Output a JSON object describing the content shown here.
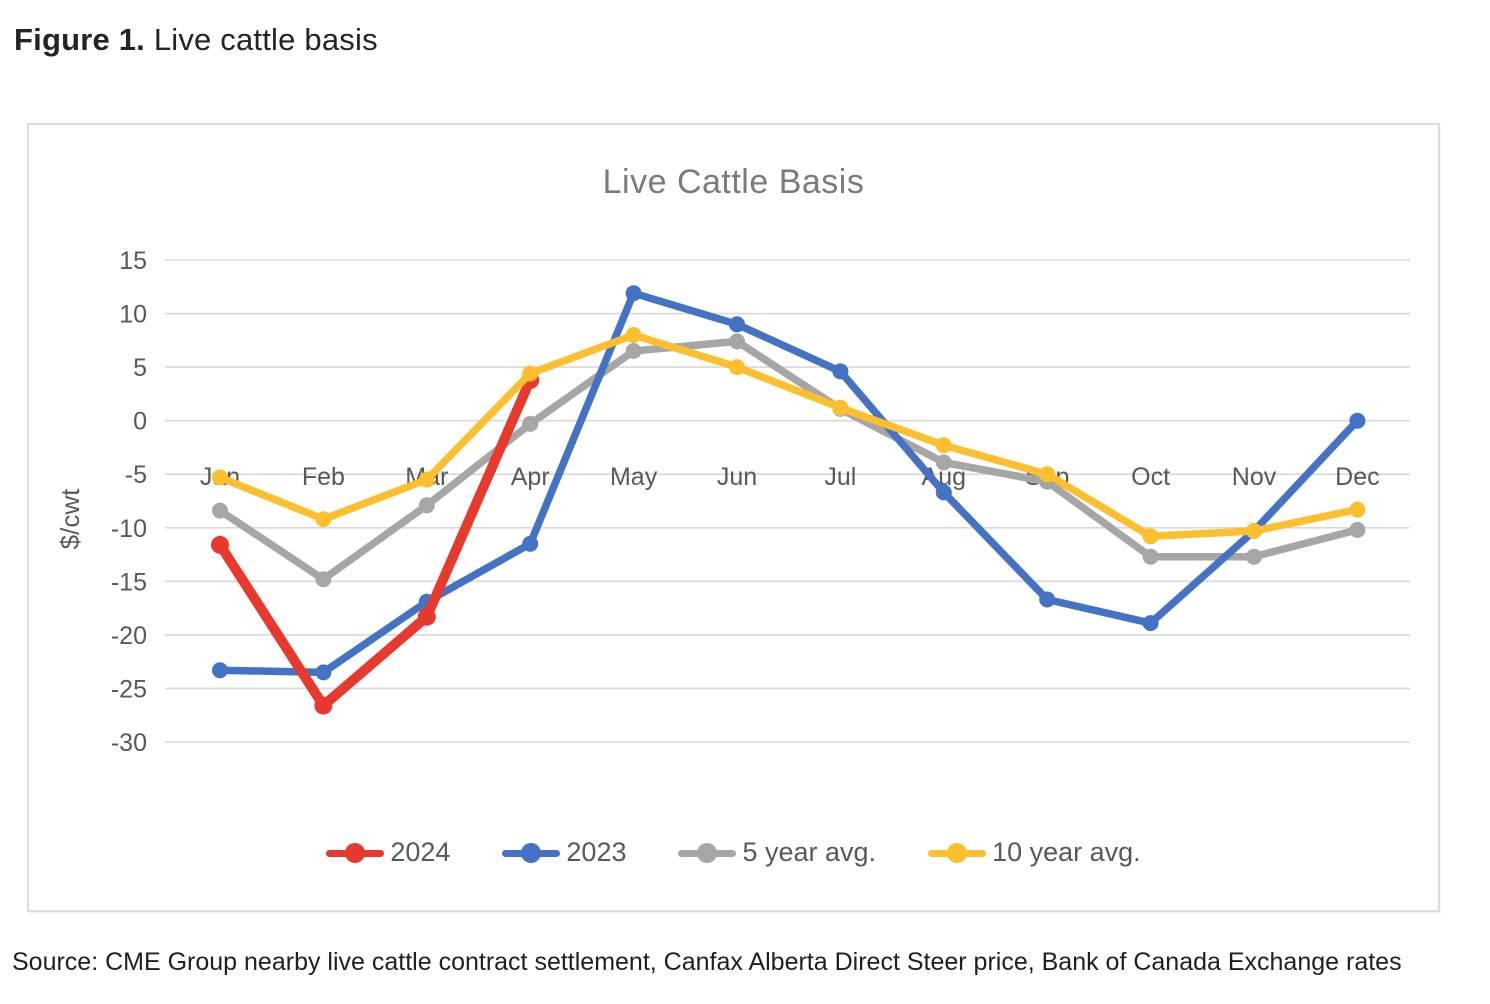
{
  "figure": {
    "label": "Figure 1.",
    "title": " Live cattle basis"
  },
  "source_note": "Source: CME Group nearby live cattle contract settlement, Canfax Alberta Direct Steer price, Bank of Canada Exchange rates",
  "chart_data": {
    "type": "line",
    "title": "Live Cattle Basis",
    "xlabel": "",
    "ylabel": "$/cwt",
    "categories": [
      "Jan",
      "Feb",
      "Mar",
      "Apr",
      "May",
      "Jun",
      "Jul",
      "Aug",
      "Sep",
      "Oct",
      "Nov",
      "Dec"
    ],
    "y_ticks": [
      15,
      10,
      5,
      0,
      -5,
      -10,
      -15,
      -20,
      -25,
      -30
    ],
    "ylim": [
      -30,
      15
    ],
    "grid": "horizontal",
    "gridline_color": "#d9d9d9",
    "legend_position": "bottom",
    "series": [
      {
        "name": "2024",
        "color": "#e8392e",
        "line_width": 10,
        "marker_radius": 9,
        "values": [
          -11.6,
          -26.6,
          -18.3,
          3.8,
          null,
          null,
          null,
          null,
          null,
          null,
          null,
          null
        ]
      },
      {
        "name": "2023",
        "color": "#4472c4",
        "line_width": 7.5,
        "marker_radius": 8,
        "values": [
          -23.3,
          -23.5,
          -16.9,
          -11.5,
          11.9,
          9.0,
          4.6,
          -6.7,
          -16.7,
          -18.9,
          -10.3,
          0.0
        ]
      },
      {
        "name": "5 year avg.",
        "color": "#a6a6a6",
        "line_width": 7.5,
        "marker_radius": 8,
        "values": [
          -8.4,
          -14.8,
          -7.9,
          -0.3,
          6.5,
          7.4,
          1.1,
          -3.9,
          -5.7,
          -12.7,
          -12.7,
          -10.2
        ]
      },
      {
        "name": "10 year avg.",
        "color": "#fcbf2e",
        "line_width": 7.5,
        "marker_radius": 8,
        "values": [
          -5.3,
          -9.2,
          -5.5,
          4.4,
          8.0,
          5.0,
          1.2,
          -2.3,
          -5.0,
          -10.8,
          -10.3,
          -8.3
        ]
      }
    ]
  }
}
